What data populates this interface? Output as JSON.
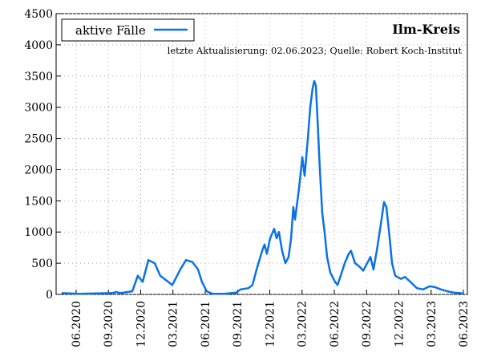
{
  "chart_data": {
    "type": "line",
    "title": "Ilm-Kreis",
    "subtitle": "letzte Aktualisierung: 02.06.2023; Quelle: Robert Koch-Institut",
    "legend": "upper left",
    "grid": true,
    "series": [
      {
        "name": "aktive Fälle",
        "color": "#0a72e6",
        "x": [
          2020.305,
          2020.448,
          2020.572,
          2020.697,
          2020.728,
          2020.759,
          2020.852,
          2020.895,
          2020.933,
          2020.976,
          2021.007,
          2021.026,
          2021.069,
          2021.131,
          2021.162,
          2021.224,
          2021.268,
          2021.318,
          2021.361,
          2021.392,
          2021.429,
          2021.473,
          2021.566,
          2021.659,
          2021.69,
          2021.752,
          2021.783,
          2021.815,
          2021.858,
          2021.877,
          2021.895,
          2021.92,
          2021.951,
          2021.97,
          2021.988,
          2022.013,
          2022.038,
          2022.063,
          2022.082,
          2022.1,
          2022.113,
          2022.144,
          2022.169,
          2022.187,
          2022.212,
          2022.231,
          2022.249,
          2022.262,
          2022.274,
          2022.287,
          2022.305,
          2022.324,
          2022.342,
          2022.361,
          2022.386,
          2022.423,
          2022.442,
          2022.467,
          2022.498,
          2022.529,
          2022.547,
          2022.578,
          2022.61,
          2022.641,
          2022.697,
          2022.721,
          2022.746,
          2022.783,
          2022.802,
          2022.821,
          2022.846,
          2022.864,
          2022.889,
          2022.933,
          2022.964,
          2023.007,
          2023.057,
          2023.106,
          2023.156,
          2023.193,
          2023.243,
          2023.293,
          2023.342,
          2023.392,
          2023.417
        ],
        "values": [
          20,
          10,
          15,
          20,
          40,
          20,
          50,
          300,
          200,
          550,
          520,
          500,
          300,
          200,
          150,
          400,
          550,
          520,
          400,
          200,
          50,
          10,
          10,
          30,
          80,
          100,
          150,
          400,
          700,
          800,
          650,
          900,
          1050,
          900,
          1000,
          700,
          500,
          600,
          900,
          1400,
          1200,
          1700,
          2200,
          1900,
          2500,
          3000,
          3300,
          3420,
          3350,
          2800,
          2000,
          1300,
          1000,
          600,
          350,
          200,
          150,
          300,
          500,
          650,
          700,
          500,
          450,
          380,
          600,
          400,
          700,
          1200,
          1480,
          1400,
          900,
          500,
          300,
          250,
          280,
          200,
          100,
          80,
          130,
          120,
          80,
          50,
          30,
          20,
          10
        ]
      }
    ],
    "xlim": [
      2020.262,
      2023.448
    ],
    "xticks": [
      {
        "value": 2020.417,
        "label": "06.2020"
      },
      {
        "value": 2020.667,
        "label": "09.2020"
      },
      {
        "value": 2020.917,
        "label": "12.2020"
      },
      {
        "value": 2021.167,
        "label": "03.2021"
      },
      {
        "value": 2021.417,
        "label": "06.2021"
      },
      {
        "value": 2021.667,
        "label": "09.2021"
      },
      {
        "value": 2021.917,
        "label": "12.2021"
      },
      {
        "value": 2022.167,
        "label": "03.2022"
      },
      {
        "value": 2022.417,
        "label": "06.2022"
      },
      {
        "value": 2022.667,
        "label": "09.2022"
      },
      {
        "value": 2022.917,
        "label": "12.2022"
      },
      {
        "value": 2023.167,
        "label": "03.2023"
      },
      {
        "value": 2023.417,
        "label": "06.2023"
      }
    ],
    "ylim": [
      0,
      4500
    ],
    "yticks": [
      0,
      500,
      1000,
      1500,
      2000,
      2500,
      3000,
      3500,
      4000,
      4500
    ]
  }
}
